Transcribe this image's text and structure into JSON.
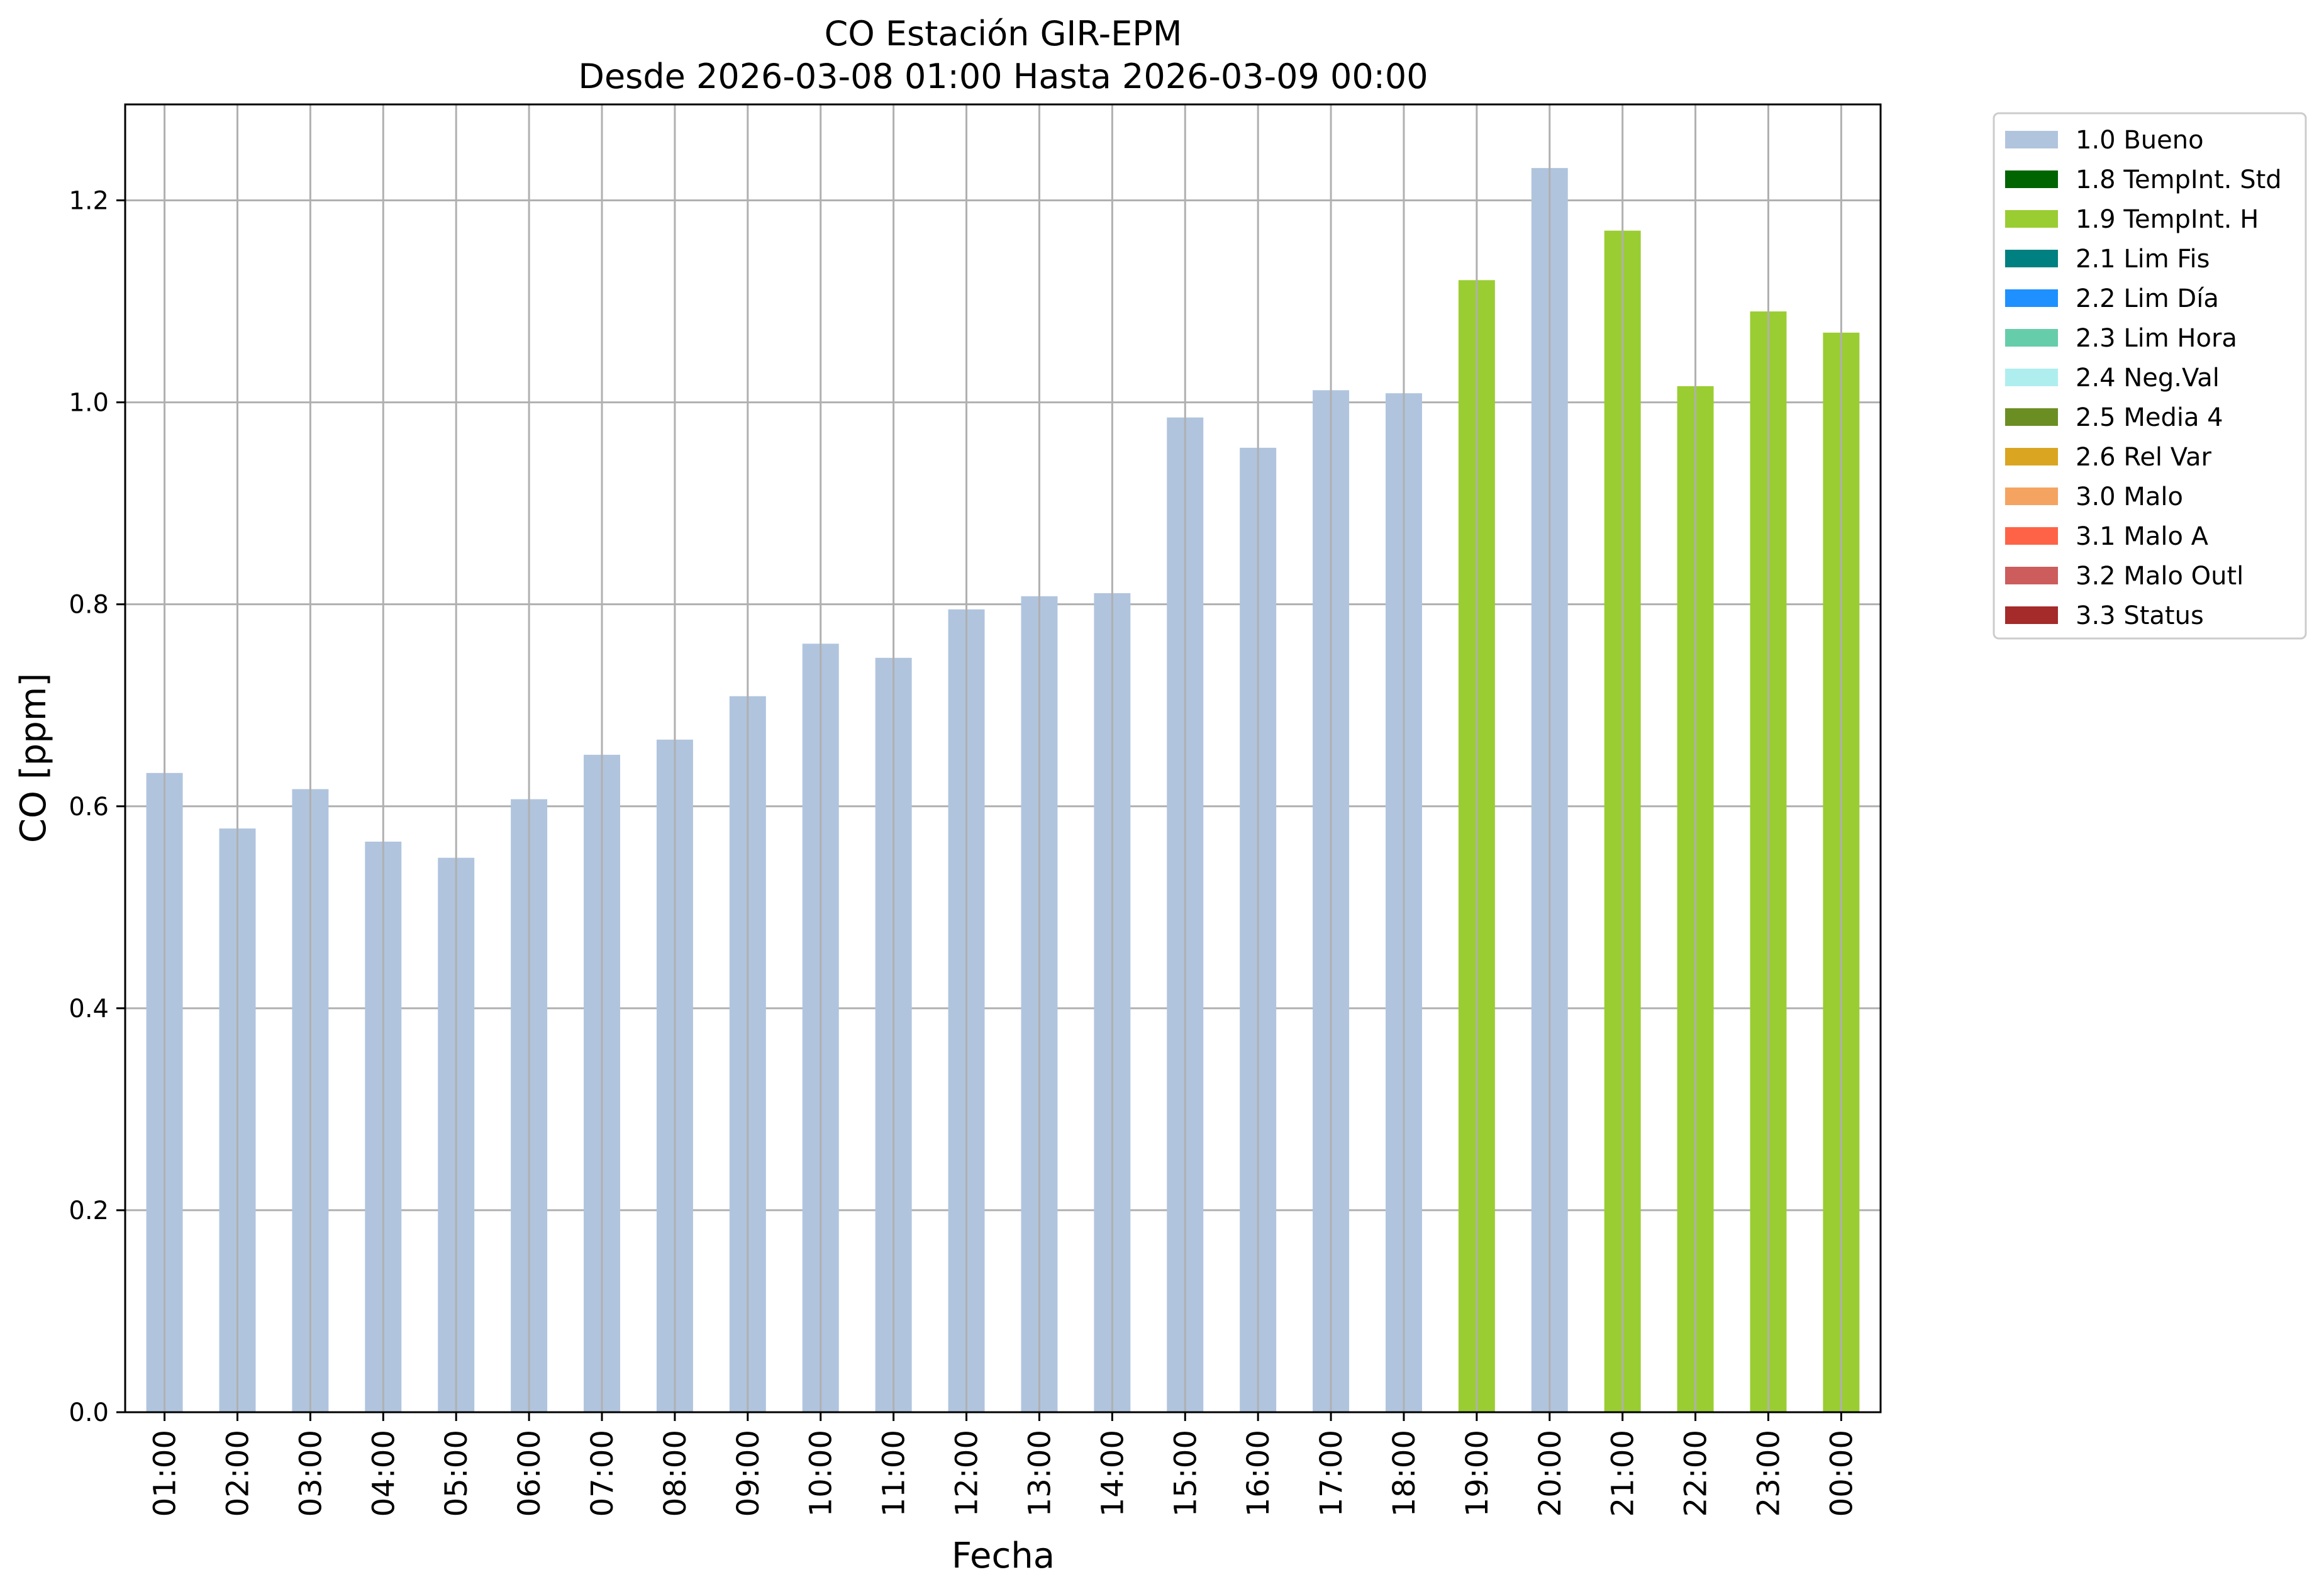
{
  "chart_data": {
    "type": "bar",
    "title": "CO Estación GIR-EPM",
    "subtitle": "Desde 2026-03-08 01:00 Hasta 2026-03-09 00:00",
    "xlabel": "Fecha",
    "ylabel": "CO [ppm]",
    "ylim": [
      0,
      1.295
    ],
    "yticks": [
      "0.0",
      "0.2",
      "0.4",
      "0.6",
      "0.8",
      "1.0",
      "1.2"
    ],
    "grid": true,
    "legend_position": "outside-top-right",
    "categories": [
      "01:00",
      "02:00",
      "03:00",
      "04:00",
      "05:00",
      "06:00",
      "07:00",
      "08:00",
      "09:00",
      "10:00",
      "11:00",
      "12:00",
      "13:00",
      "14:00",
      "15:00",
      "16:00",
      "17:00",
      "18:00",
      "19:00",
      "20:00",
      "21:00",
      "22:00",
      "23:00",
      "00:00"
    ],
    "values": [
      0.633,
      0.578,
      0.617,
      0.565,
      0.549,
      0.607,
      0.651,
      0.666,
      0.709,
      0.761,
      0.747,
      0.795,
      0.808,
      0.811,
      0.985,
      0.955,
      1.012,
      1.009,
      1.121,
      1.232,
      1.17,
      1.016,
      1.09,
      1.069
    ],
    "flags": [
      "1.0 Bueno",
      "1.0 Bueno",
      "1.0 Bueno",
      "1.0 Bueno",
      "1.0 Bueno",
      "1.0 Bueno",
      "1.0 Bueno",
      "1.0 Bueno",
      "1.0 Bueno",
      "1.0 Bueno",
      "1.0 Bueno",
      "1.0 Bueno",
      "1.0 Bueno",
      "1.0 Bueno",
      "1.0 Bueno",
      "1.0 Bueno",
      "1.0 Bueno",
      "1.0 Bueno",
      "1.9 TempInt. H",
      "1.0 Bueno",
      "1.9 TempInt. H",
      "1.9 TempInt. H",
      "1.9 TempInt. H",
      "1.9 TempInt. H"
    ],
    "legend": [
      {
        "label": "1.0 Bueno",
        "color": "#b0c4de"
      },
      {
        "label": "1.8 TempInt. Std",
        "color": "#006400"
      },
      {
        "label": "1.9 TempInt. H",
        "color": "#9acd32"
      },
      {
        "label": "2.1 Lim Fis",
        "color": "#008080"
      },
      {
        "label": "2.2 Lim Día",
        "color": "#1e90ff"
      },
      {
        "label": "2.3 Lim Hora",
        "color": "#66cdaa"
      },
      {
        "label": "2.4 Neg.Val",
        "color": "#afeeee"
      },
      {
        "label": "2.5 Media 4",
        "color": "#6b8e23"
      },
      {
        "label": "2.6 Rel Var",
        "color": "#daa520"
      },
      {
        "label": "3.0 Malo",
        "color": "#f4a460"
      },
      {
        "label": "3.1 Malo A",
        "color": "#ff6347"
      },
      {
        "label": "3.2 Malo Outl",
        "color": "#cd5c5c"
      },
      {
        "label": "3.3 Status",
        "color": "#a52a2a"
      }
    ]
  }
}
